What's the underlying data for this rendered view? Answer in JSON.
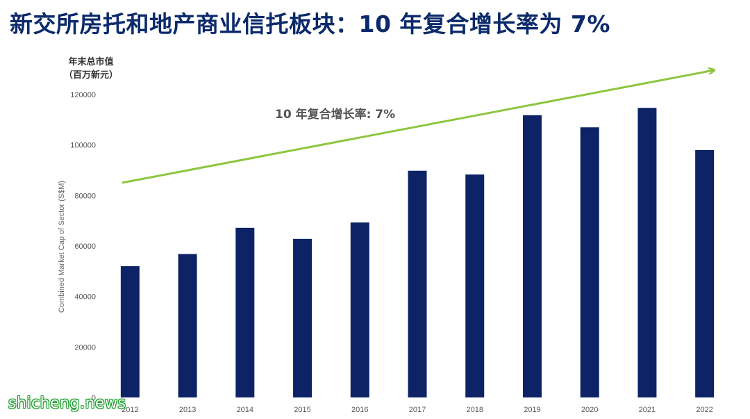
{
  "title": "新交所房托和地产商业信托板块：10 年复合增长率为 7%",
  "ylabel_cn_line1": "年末总市值",
  "ylabel_cn_line2": "（百万新元）",
  "watermark": "shicheng.news",
  "chart_data": {
    "type": "bar",
    "categories": [
      "2012",
      "2013",
      "2014",
      "2015",
      "2016",
      "2017",
      "2018",
      "2019",
      "2020",
      "2021",
      "2022"
    ],
    "values": [
      52000,
      56800,
      67200,
      62800,
      69300,
      89800,
      88300,
      111800,
      107000,
      114700,
      98000
    ],
    "ylabel": "Combined Market Cap of Sector (S$M)",
    "ylim": [
      0,
      120000
    ],
    "yticks": [
      0,
      20000,
      40000,
      60000,
      80000,
      100000,
      120000
    ],
    "grid": false,
    "bar_color": "#0d2366",
    "trend_label": "10 年复合增长率: 7%",
    "trend_color": "#8dc63f"
  }
}
